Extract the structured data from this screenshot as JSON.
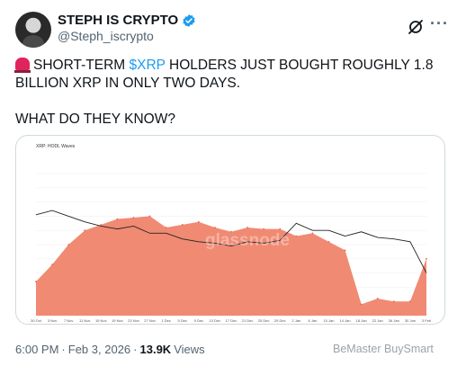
{
  "author": {
    "display_name": "STEPH IS CRYPTO",
    "handle": "@Steph_iscrypto"
  },
  "tweet": {
    "text_pre": "SHORT-TERM ",
    "cashtag": "$XRP",
    "text_post": " HOLDERS JUST BOUGHT ROUGHLY 1.8 BILLION XRP IN ONLY TWO DAYS.",
    "question": "WHAT DO THEY KNOW?"
  },
  "meta": {
    "time": "6:00 PM",
    "date": "Feb 3, 2026",
    "views_count": "13.9K",
    "views_label": "Views"
  },
  "watermark": "BeMaster BuySmart",
  "icons": {
    "verified": "verified-badge-icon",
    "grok": "grok-icon",
    "more": "more-icon",
    "siren": "siren-icon"
  },
  "colors": {
    "accent": "#1d9bf0",
    "area": "#f08a73",
    "price_line": "#222222"
  },
  "chart_data": {
    "type": "area",
    "title": "XRP: HODL Waves",
    "watermark": "glassnode",
    "x": [
      "30 Oct",
      "3 Nov",
      "7 Nov",
      "11 Nov",
      "15 Nov",
      "19 Nov",
      "23 Nov",
      "27 Nov",
      "1 Dec",
      "5 Dec",
      "9 Dec",
      "13 Dec",
      "17 Dec",
      "21 Dec",
      "25 Dec",
      "29 Dec",
      "2 Jan",
      "6 Jan",
      "10 Jan",
      "14 Jan",
      "18 Jan",
      "22 Jan",
      "26 Jan",
      "30 Jan",
      "3 Feb"
    ],
    "ylim": [
      0,
      100
    ],
    "series": [
      {
        "values": [
          24,
          36,
          50,
          60,
          64,
          68,
          69,
          70,
          62,
          64,
          66,
          62,
          59,
          62,
          61,
          61,
          56,
          58,
          52,
          46,
          8,
          12,
          10,
          10,
          40
        ]
      },
      {
        "values": [
          71,
          74,
          70,
          66,
          63,
          61,
          63,
          58,
          58,
          54,
          52,
          51,
          49,
          52,
          51,
          53,
          65,
          60,
          60,
          56,
          59,
          55,
          54,
          52,
          30
        ]
      }
    ]
  }
}
